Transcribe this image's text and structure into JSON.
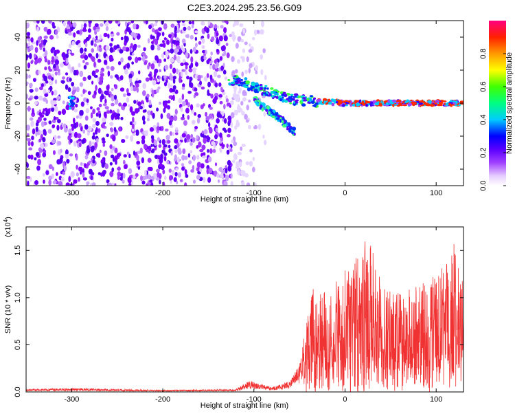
{
  "title": "C2E3.2024.295.23.56.G09",
  "colors": {
    "accent": "#f03232",
    "axis": "#000000",
    "background": "#ffffff"
  },
  "chart_data": [
    {
      "type": "heatmap",
      "xlabel": "Height of straight line (km)",
      "ylabel": "Frequency (Hz)",
      "xlim": [
        -350,
        130
      ],
      "ylim": [
        -50,
        50
      ],
      "xticks": [
        -300,
        -200,
        -100,
        0,
        100
      ],
      "yticks": [
        -40,
        -20,
        0,
        20,
        40
      ],
      "grid": false,
      "colorbar": {
        "label": "Normalized spectral amplitude",
        "range": [
          0,
          1
        ],
        "ticks": [
          "0.0",
          "0.2",
          "0.4",
          "0.6",
          "0.8"
        ],
        "colormap": "rainbow (violet to red)"
      },
      "features": {
        "noise_region_x": [
          -350,
          -125
        ],
        "noise_fade_x": [
          -125,
          -85
        ],
        "signal_track": [
          {
            "x": -125,
            "y": 14
          },
          {
            "x": -110,
            "y": 12
          },
          {
            "x": -95,
            "y": 9
          },
          {
            "x": -80,
            "y": 6
          },
          {
            "x": -65,
            "y": 3
          },
          {
            "x": -50,
            "y": 2
          },
          {
            "x": -30,
            "y": 1
          },
          {
            "x": 0,
            "y": 0
          },
          {
            "x": 50,
            "y": 0
          },
          {
            "x": 130,
            "y": 0
          }
        ],
        "signal_branch": [
          {
            "x": -100,
            "y": 2
          },
          {
            "x": -85,
            "y": -4
          },
          {
            "x": -70,
            "y": -10
          },
          {
            "x": -57,
            "y": -17
          }
        ]
      }
    },
    {
      "type": "line",
      "xlabel": "Height of straight line (km)",
      "ylabel": "SNR (10 * v/v)",
      "yunit": "(x10",
      "yunit_exp": "4",
      "yunit_close": ")",
      "xlim": [
        -350,
        130
      ],
      "ylim": [
        0,
        1.75
      ],
      "xticks": [
        -300,
        -200,
        -100,
        0,
        100
      ],
      "yticks": [
        "0.0",
        "0.5",
        "1.0",
        "1.5"
      ],
      "grid": false,
      "series": [
        {
          "color": "#f03232",
          "envelope": [
            {
              "x": -350,
              "y": 0.03
            },
            {
              "x": -300,
              "y": 0.04
            },
            {
              "x": -200,
              "y": 0.02
            },
            {
              "x": -120,
              "y": 0.03
            },
            {
              "x": -105,
              "y": 0.12
            },
            {
              "x": -80,
              "y": 0.05
            },
            {
              "x": -60,
              "y": 0.12
            },
            {
              "x": -50,
              "y": 0.3
            },
            {
              "x": -42,
              "y": 0.75
            },
            {
              "x": -35,
              "y": 1.1
            },
            {
              "x": -20,
              "y": 1.05
            },
            {
              "x": -10,
              "y": 1.2
            },
            {
              "x": 0,
              "y": 1.3
            },
            {
              "x": 15,
              "y": 1.45
            },
            {
              "x": 25,
              "y": 1.72
            },
            {
              "x": 35,
              "y": 1.3
            },
            {
              "x": 50,
              "y": 1.1
            },
            {
              "x": 65,
              "y": 1.05
            },
            {
              "x": 80,
              "y": 1.15
            },
            {
              "x": 95,
              "y": 1.25
            },
            {
              "x": 110,
              "y": 1.35
            },
            {
              "x": 118,
              "y": 1.67
            },
            {
              "x": 125,
              "y": 1.3
            },
            {
              "x": 130,
              "y": 1.2
            }
          ]
        }
      ]
    }
  ]
}
